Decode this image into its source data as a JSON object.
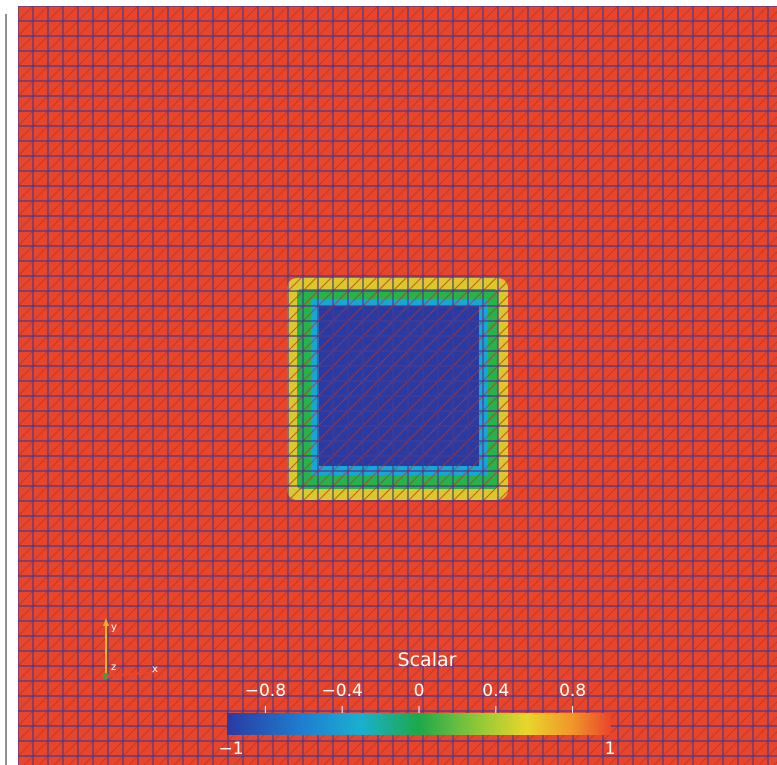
{
  "colorbar": {
    "title": "Scalar",
    "ticks": [
      {
        "value": -0.8,
        "label": "−0.8"
      },
      {
        "value": -0.4,
        "label": "−0.4"
      },
      {
        "value": 0,
        "label": "0"
      },
      {
        "value": 0.4,
        "label": "0.4"
      },
      {
        "value": 0.8,
        "label": "0.8"
      }
    ],
    "min_label": "−1",
    "max_label": "1",
    "range": [
      -1,
      1
    ]
  },
  "axes_triad": {
    "y_label": "y",
    "z_label": "z",
    "x_label": "x"
  },
  "colors": {
    "field_high": "#e8452b",
    "field_low": "#2a3aa3",
    "mesh_lines": "#4a3a8f",
    "mesh_diagonals": "#b5362a",
    "contour_cyan": "#17a6d6",
    "contour_green": "#28b24a",
    "contour_yellow": "#dcc82a"
  }
}
